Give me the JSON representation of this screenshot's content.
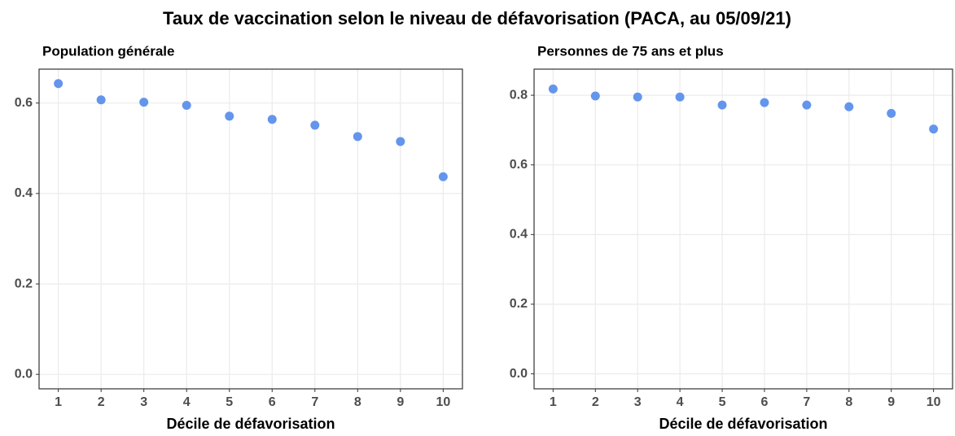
{
  "title": "Taux de vaccination selon le niveau de défavorisation (PACA, au 05/09/21)",
  "chart_data": [
    {
      "type": "scatter",
      "title": "Population générale",
      "xlabel": "Décile de défavorisation",
      "x": [
        1,
        2,
        3,
        4,
        5,
        6,
        7,
        8,
        9,
        10
      ],
      "values": [
        0.643,
        0.607,
        0.602,
        0.595,
        0.571,
        0.564,
        0.551,
        0.526,
        0.515,
        0.437
      ],
      "color": "#6495ed",
      "xlim": [
        0.55,
        10.45
      ],
      "xticks": [
        1,
        2,
        3,
        4,
        5,
        6,
        7,
        8,
        9,
        10
      ],
      "ylim": [
        -0.032,
        0.675
      ],
      "yticks": [
        {
          "value": 0,
          "label": "0.0"
        },
        0.2,
        0.4,
        0.6
      ],
      "grid": true
    },
    {
      "type": "scatter",
      "title": "Personnes de 75 ans et plus",
      "xlabel": "Décile de défavorisation",
      "x": [
        1,
        2,
        3,
        4,
        5,
        6,
        7,
        8,
        9,
        10
      ],
      "values": [
        0.818,
        0.798,
        0.795,
        0.795,
        0.772,
        0.779,
        0.772,
        0.767,
        0.748,
        0.703
      ],
      "color": "#6495ed",
      "xlim": [
        0.55,
        10.45
      ],
      "xticks": [
        1,
        2,
        3,
        4,
        5,
        6,
        7,
        8,
        9,
        10
      ],
      "ylim": [
        -0.043,
        0.875
      ],
      "yticks": [
        {
          "value": 0,
          "label": "0.0"
        },
        0.2,
        0.4,
        0.6,
        0.8
      ],
      "grid": true
    }
  ]
}
